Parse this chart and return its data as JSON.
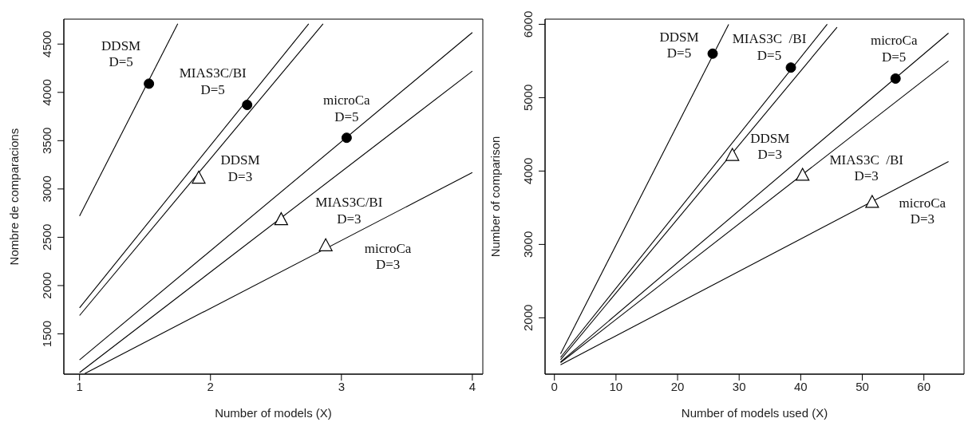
{
  "chart_data": [
    {
      "type": "line",
      "xlabel": "Number of models (X)",
      "ylabel": "Nombre de comparacions",
      "xlim": [
        0.88,
        4.08
      ],
      "ylim": [
        1083,
        4758
      ],
      "xticks": [
        1,
        2,
        3,
        4
      ],
      "yticks": [
        1500,
        2000,
        2500,
        3000,
        3500,
        4000,
        4500
      ],
      "grid": false,
      "line_style": "solid",
      "series": [
        {
          "color": "#000000",
          "x": [
            1,
            1.75
          ],
          "values": [
            2720,
            4710
          ]
        },
        {
          "color": "#000000",
          "x": [
            1,
            2.75
          ],
          "values": [
            1770,
            4710
          ]
        },
        {
          "color": "#000000",
          "x": [
            1,
            2.86
          ],
          "values": [
            1690,
            4710
          ]
        },
        {
          "color": "#000000",
          "x": [
            1,
            4
          ],
          "values": [
            1230,
            4620
          ]
        },
        {
          "color": "#000000",
          "x": [
            1,
            4
          ],
          "values": [
            1100,
            4220
          ]
        },
        {
          "color": "#000000",
          "x": [
            1.04,
            4
          ],
          "values": [
            1090,
            3170
          ]
        },
        {
          "type": "scatter",
          "color": "#000000",
          "marker": "circle",
          "x": [
            1.53,
            2.28,
            3.04
          ],
          "values": [
            4090,
            3870,
            3530
          ]
        },
        {
          "type": "scatter",
          "color": "#000000",
          "marker": "triangle",
          "x": [
            1.91,
            2.54,
            2.88
          ],
          "values": [
            3110,
            2680,
            2410
          ]
        }
      ],
      "annotations": [
        {
          "text": "DDSM\nD=5",
          "x": 1.53,
          "y": 4090
        },
        {
          "text": "MIAS3C/BI\nD=5",
          "x": 2.28,
          "y": 3870
        },
        {
          "text": "microCa\nD=5",
          "x": 3.04,
          "y": 3530
        },
        {
          "text": "DDSM\nD=3",
          "x": 1.91,
          "y": 3110
        },
        {
          "text": "MIAS3C/BI\nD=3",
          "x": 2.54,
          "y": 2680
        },
        {
          "text": "microCa\nD=3",
          "x": 2.88,
          "y": 2410
        }
      ]
    },
    {
      "type": "line",
      "xlabel": "Number of models used (X)",
      "ylabel": "Number of comparison",
      "xlim": [
        -1.52,
        66.52
      ],
      "ylim": [
        1232,
        6070
      ],
      "xticks": [
        0,
        10,
        20,
        30,
        40,
        50,
        60
      ],
      "yticks": [
        2000,
        3000,
        4000,
        5000,
        6000
      ],
      "grid": false,
      "line_style": "solid",
      "series": [
        {
          "color": "#000000",
          "x": [
            1,
            28.3
          ],
          "values": [
            1510,
            6000
          ]
        },
        {
          "color": "#000000",
          "x": [
            1,
            44.3
          ],
          "values": [
            1460,
            6000
          ]
        },
        {
          "color": "#000000",
          "x": [
            1,
            45.9
          ],
          "values": [
            1430,
            5960
          ]
        },
        {
          "color": "#000000",
          "x": [
            1,
            64
          ],
          "values": [
            1400,
            5880
          ]
        },
        {
          "color": "#000000",
          "x": [
            1,
            64
          ],
          "values": [
            1390,
            5500
          ]
        },
        {
          "color": "#000000",
          "x": [
            1,
            64
          ],
          "values": [
            1360,
            4130
          ]
        },
        {
          "type": "scatter",
          "color": "#000000",
          "marker": "circle",
          "x": [
            25.7,
            38.4,
            55.4
          ],
          "values": [
            5600,
            5410,
            5260
          ]
        },
        {
          "type": "scatter",
          "color": "#000000",
          "marker": "triangle",
          "x": [
            28.9,
            40.3,
            51.6
          ],
          "values": [
            4210,
            3940,
            3570
          ]
        }
      ],
      "annotations": [
        {
          "text": "DDSM\nD=5",
          "x": 25.7,
          "y": 5600
        },
        {
          "text": "MIAS3C  /BI\nD=5",
          "x": 38.4,
          "y": 5410
        },
        {
          "text": "microCa\nD=5",
          "x": 55.4,
          "y": 5260
        },
        {
          "text": "DDSM\nD=3",
          "x": 28.9,
          "y": 4210
        },
        {
          "text": "MIAS3C  /BI\nD=3",
          "x": 40.3,
          "y": 3940
        },
        {
          "text": "microCa\nD=3",
          "x": 51.6,
          "y": 3570
        }
      ]
    }
  ]
}
